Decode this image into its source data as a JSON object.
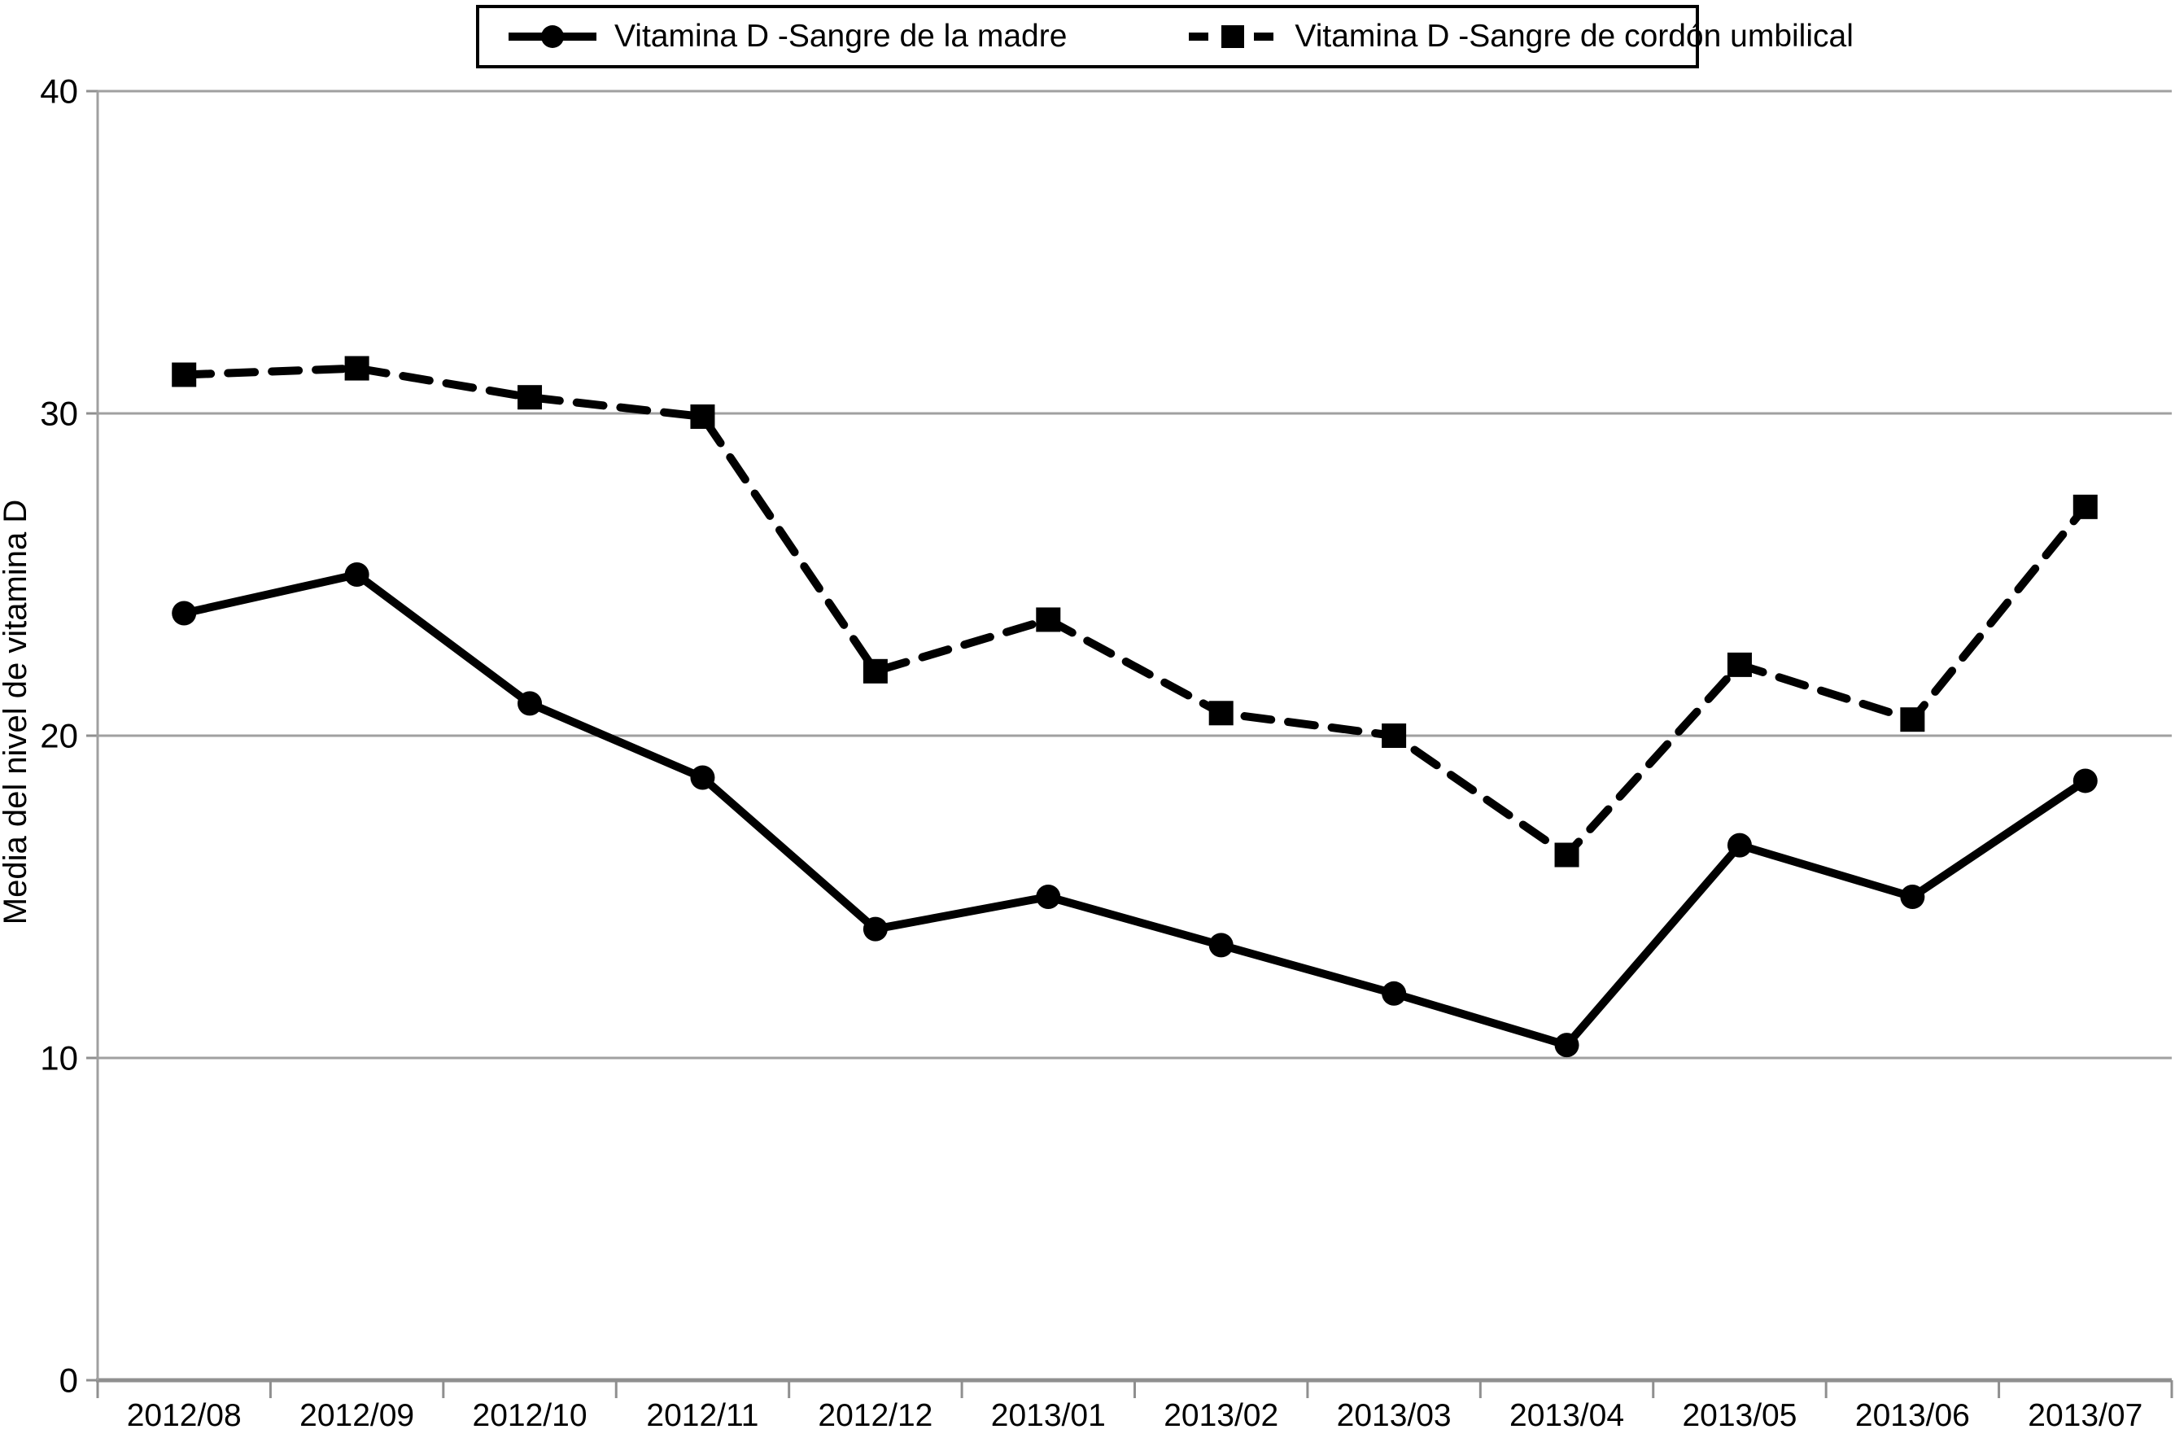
{
  "figure": {
    "background": "#ffffff",
    "series_color": "#000000",
    "gridline_color": "#a0a0a0",
    "axis_color": "#8f8f8f"
  },
  "legend": {
    "items": [
      {
        "label": "Vitamina D -Sangre de la madre",
        "marker": "circle",
        "line": "solid"
      },
      {
        "label": "Vitamina D -Sangre de cordón umbilical",
        "marker": "square",
        "line": "dashed"
      }
    ]
  },
  "chart_data": {
    "type": "line",
    "title": "",
    "xlabel": "",
    "ylabel": "Media del nivel de vitamina D",
    "ylim": [
      0,
      40
    ],
    "yticks": [
      0,
      10,
      20,
      30,
      40
    ],
    "grid": true,
    "legend_position": "top-center",
    "categories": [
      "2012/08",
      "2012/09",
      "2012/10",
      "2012/11",
      "2012/12",
      "2013/01",
      "2013/02",
      "2013/03",
      "2013/04",
      "2013/05",
      "2013/06",
      "2013/07"
    ],
    "series": [
      {
        "name": "Vitamina D -Sangre de la madre",
        "line_style": "solid",
        "marker": "circle",
        "values": [
          23.8,
          25.0,
          21.0,
          18.7,
          14.0,
          15.0,
          13.5,
          12.0,
          10.4,
          16.6,
          15.0,
          18.6
        ]
      },
      {
        "name": "Vitamina D -Sangre de cordón umbilical",
        "line_style": "dashed",
        "marker": "square",
        "values": [
          31.2,
          31.4,
          30.5,
          29.9,
          22.0,
          23.6,
          20.7,
          20.0,
          16.3,
          22.2,
          20.5,
          27.1
        ]
      }
    ]
  }
}
